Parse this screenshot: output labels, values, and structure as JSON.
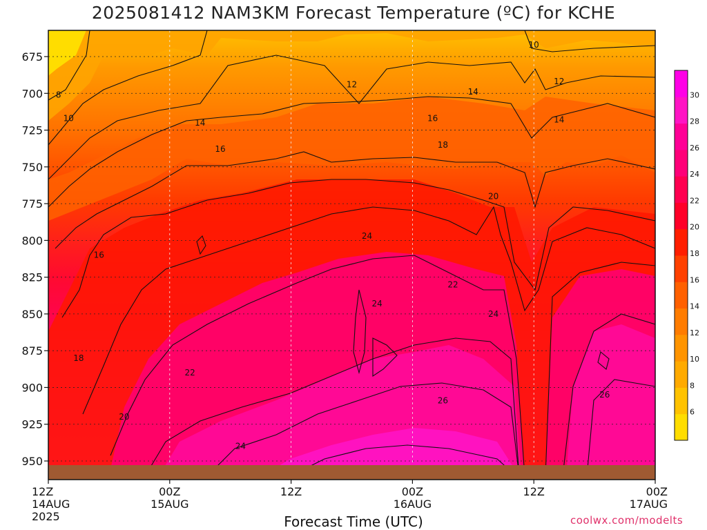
{
  "chart_data": {
    "type": "heatmap",
    "title": "2025081412 NAM3KM Forecast Temperature (ºC) for KCHE",
    "xlabel": "Forecast Time (UTC)",
    "ylabel": "",
    "credit": "coolwx.com/modelts",
    "y_axis": {
      "values": [
        675,
        700,
        725,
        750,
        775,
        800,
        825,
        850,
        875,
        900,
        925,
        950
      ],
      "range": [
        660,
        962
      ]
    },
    "x_axis": {
      "range_hours": [
        0,
        60
      ],
      "ticks": [
        {
          "hour": 0,
          "lines": [
            "12Z",
            "14AUG",
            "2025"
          ]
        },
        {
          "hour": 12,
          "lines": [
            "00Z",
            "15AUG"
          ]
        },
        {
          "hour": 24,
          "lines": [
            "12Z"
          ]
        },
        {
          "hour": 36,
          "lines": [
            "00Z",
            "16AUG"
          ]
        },
        {
          "hour": 48,
          "lines": [
            "12Z"
          ]
        },
        {
          "hour": 60,
          "lines": [
            "00Z",
            "17AUG"
          ]
        }
      ]
    },
    "grid": true,
    "colorbar": {
      "placement": "right",
      "labels": [
        6,
        8,
        10,
        12,
        14,
        16,
        18,
        20,
        22,
        24,
        26,
        28,
        30
      ],
      "colors": [
        "#ffdd00",
        "#ffc200",
        "#ffaa00",
        "#ff9400",
        "#ff7c00",
        "#ff6000",
        "#ff4000",
        "#ff1e00",
        "#ff0028",
        "#ff0050",
        "#ff0078",
        "#ff0096",
        "#ff14c4",
        "#ff00e6"
      ]
    },
    "contour_labels": [
      {
        "label": "8",
        "hour": 1.0,
        "p": 701
      },
      {
        "label": "10",
        "hour": 2.0,
        "p": 717
      },
      {
        "label": "10",
        "hour": 48.0,
        "p": 667
      },
      {
        "label": "12",
        "hour": 30.0,
        "p": 694
      },
      {
        "label": "12",
        "hour": 50.5,
        "p": 692
      },
      {
        "label": "14",
        "hour": 15.0,
        "p": 720
      },
      {
        "label": "14",
        "hour": 42.0,
        "p": 699
      },
      {
        "label": "14",
        "hour": 50.5,
        "p": 718
      },
      {
        "label": "16",
        "hour": 17.0,
        "p": 738
      },
      {
        "label": "16",
        "hour": 38.0,
        "p": 717
      },
      {
        "label": "16",
        "hour": 5.0,
        "p": 810
      },
      {
        "label": "18",
        "hour": 39.0,
        "p": 735
      },
      {
        "label": "18",
        "hour": 3.0,
        "p": 880
      },
      {
        "label": "20",
        "hour": 44.0,
        "p": 770
      },
      {
        "label": "20",
        "hour": 7.5,
        "p": 920
      },
      {
        "label": "22",
        "hour": 40.0,
        "p": 830
      },
      {
        "label": "22",
        "hour": 14.0,
        "p": 890
      },
      {
        "label": "24",
        "hour": 31.5,
        "p": 797
      },
      {
        "label": "24",
        "hour": 32.5,
        "p": 843
      },
      {
        "label": "24",
        "hour": 44.0,
        "p": 850
      },
      {
        "label": "24",
        "hour": 19.0,
        "p": 940
      },
      {
        "label": "26",
        "hour": 39.0,
        "p": 909
      },
      {
        "label": "26",
        "hour": 55.0,
        "p": 905
      }
    ]
  }
}
